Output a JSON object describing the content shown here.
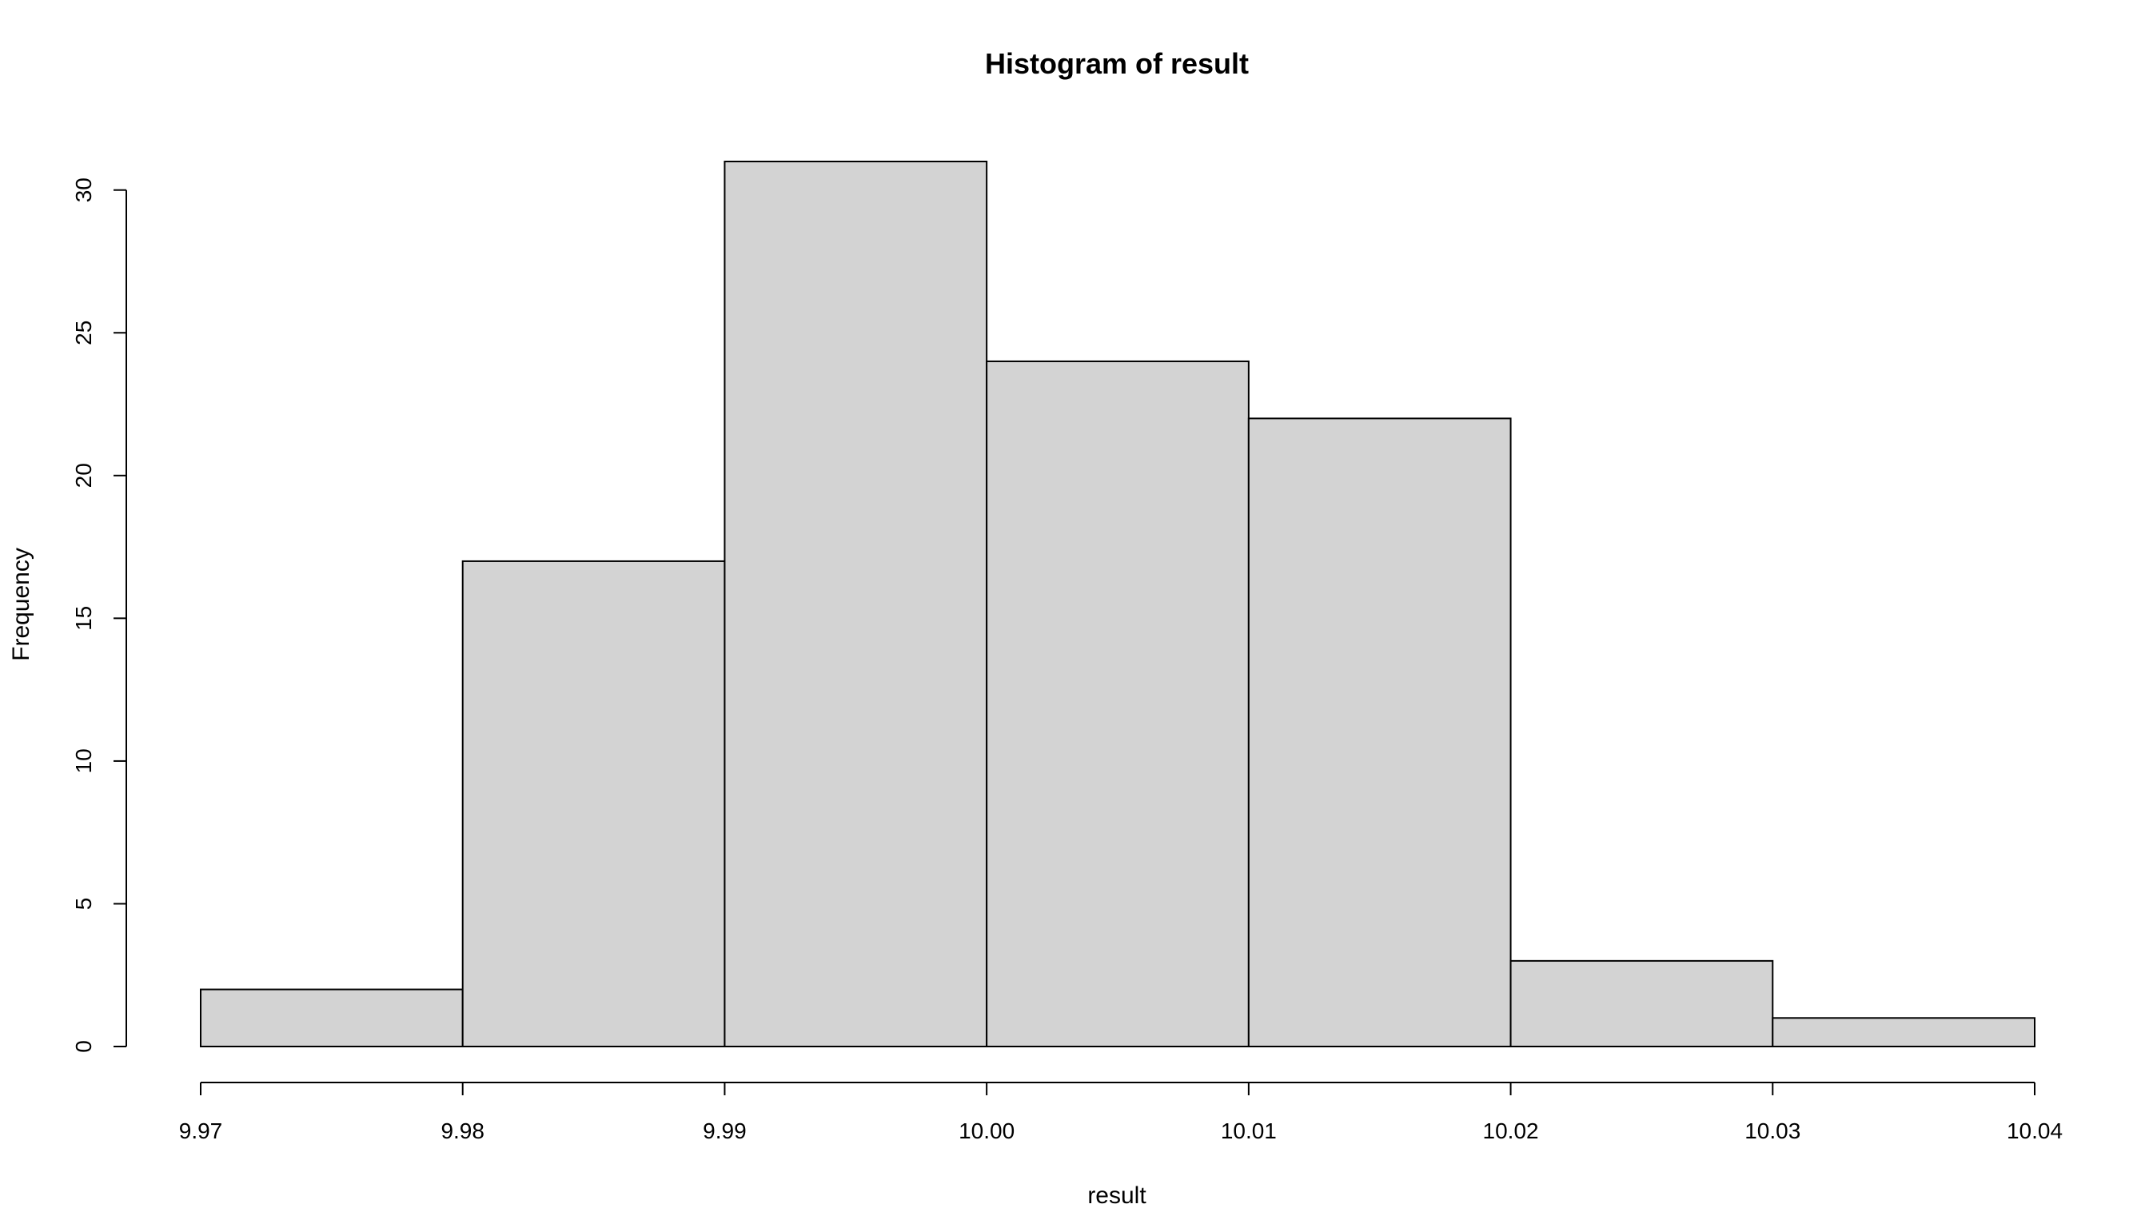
{
  "chart_data": {
    "type": "bar",
    "title": "Histogram of result",
    "xlabel": "result",
    "ylabel": "Frequency",
    "bin_edges": [
      9.97,
      9.98,
      9.99,
      10.0,
      10.01,
      10.02,
      10.03,
      10.04
    ],
    "values": [
      2,
      17,
      31,
      24,
      22,
      3,
      1
    ],
    "xlim": [
      9.97,
      10.04
    ],
    "ylim": [
      0,
      31
    ],
    "x_ticks": [
      9.97,
      9.98,
      9.99,
      10.0,
      10.01,
      10.02,
      10.03,
      10.04
    ],
    "x_tick_labels": [
      "9.97",
      "9.98",
      "9.99",
      "10.00",
      "10.01",
      "10.02",
      "10.03",
      "10.04"
    ],
    "y_ticks": [
      0,
      5,
      10,
      15,
      20,
      25,
      30
    ],
    "y_tick_labels": [
      "0",
      "5",
      "10",
      "15",
      "20",
      "25",
      "30"
    ],
    "grid": false,
    "colors": {
      "bar_fill": "#d3d3d3",
      "bar_stroke": "#000000"
    }
  }
}
